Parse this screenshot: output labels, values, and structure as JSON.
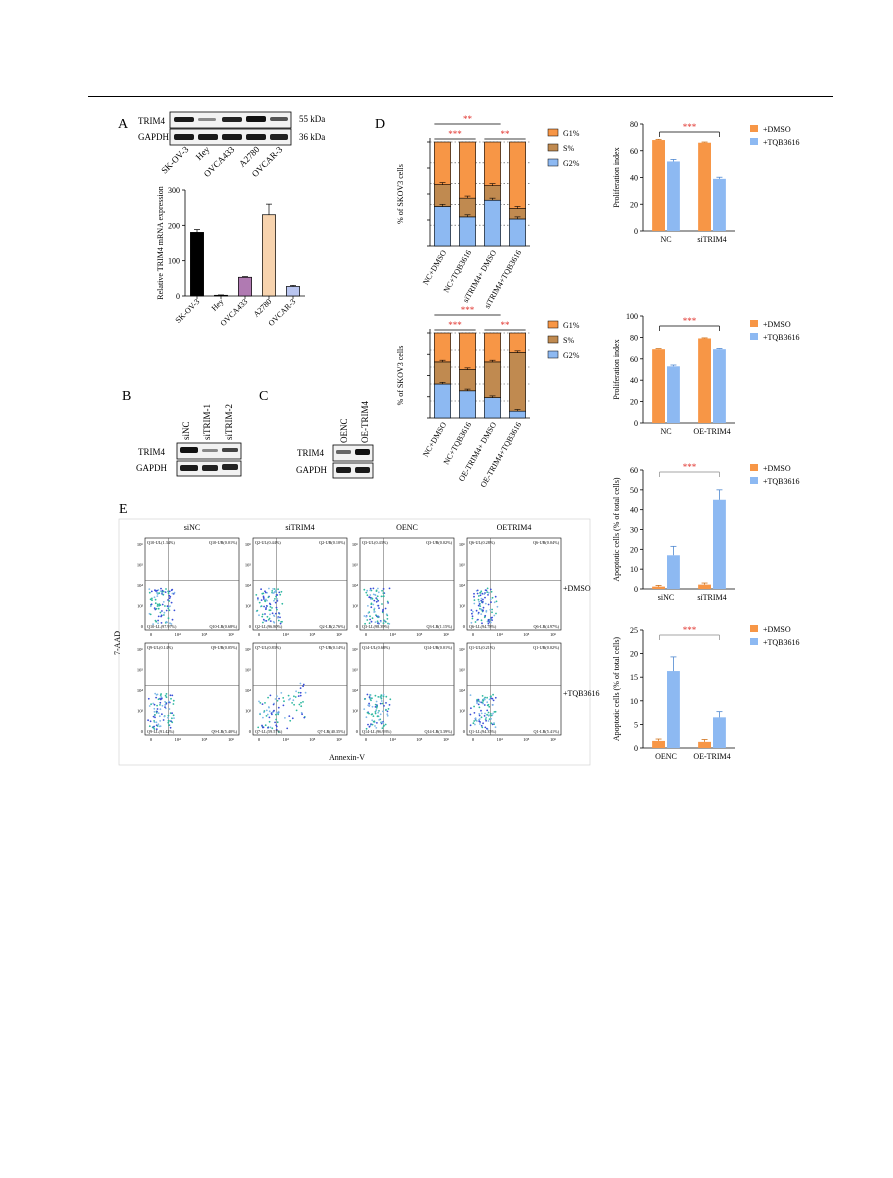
{
  "colors": {
    "orange": "#F79646",
    "lightblue": "#8DB9F2",
    "brown": "#C08A50",
    "blue": "#8DB9F2",
    "red": "#E0302A",
    "black": "#000000",
    "purple": "#B07AB2",
    "peach": "#F7D3AE",
    "lavender": "#B9C5F0"
  },
  "panel_labels": {
    "A": "A",
    "B": "B",
    "C": "C",
    "D": "D",
    "E": "E"
  },
  "blotA": {
    "rows": [
      "TRIM4",
      "GAPDH"
    ],
    "sizes": [
      "55 kDa",
      "36 kDa"
    ],
    "lanes": [
      "SK-OV-3",
      "Hey",
      "OVCA433",
      "A2780",
      "OVCAR-3"
    ]
  },
  "blotB": {
    "rows": [
      "TRIM4",
      "GAPDH"
    ],
    "lanes": [
      "siNC",
      "siTRIM-1",
      "siTRIM-2"
    ]
  },
  "blotC": {
    "rows": [
      "TRIM4",
      "GAPDH"
    ],
    "lanes": [
      "OENC",
      "OE-TRIM4"
    ]
  },
  "flow": {
    "col_titles": [
      "siNC",
      "siTRIM4",
      "OENC",
      "OETRIM4"
    ],
    "row_labels": [
      "+DMSO",
      "+TQB3616"
    ],
    "ylabel": "7-AAD",
    "xlabel": "Annexin-V",
    "ytick_labels": [
      "10⁶",
      "10⁵",
      "10⁴",
      "10³",
      "0"
    ],
    "xtick_labels": [
      "0",
      "10⁴",
      "10⁵",
      "10⁶"
    ],
    "quadrants": [
      [
        [
          "Q10-UL(1.34%)",
          "Q10-UR(0.01%)",
          "Q10-LL(97.97%)",
          "Q10-LR(0.68%)"
        ],
        [
          "Q2-UL(0.44%)",
          "Q2-UR(0.10%)",
          "Q2-LL(96.80%)",
          "Q2-LR(2.76%)"
        ],
        [
          "Q3-UL(0.43%)",
          "Q3-UR(0.02%)",
          "Q3-LL(98.39%)",
          "Q3-LR(1.15%)"
        ],
        [
          "Q6-UL(0.28%)",
          "Q6-UR(0.04%)",
          "Q6-LL(94.78%)",
          "Q6-LR(4.97%)"
        ]
      ],
      [
        [
          "Q9-UL(0.14%)",
          "Q9-UR(0.05%)",
          "Q9-LL(91.42%)",
          "Q9-LR(5.40%)"
        ],
        [
          "Q7-UL(0.83%)",
          "Q7-UR(0.14%)",
          "Q7-LL(59.57%)",
          "Q7-LR(40.35%)"
        ],
        [
          "Q14-UL(0.68%)",
          "Q14-UR(0.01%)",
          "Q14-LL(96.93%)",
          "Q14-LR(3.39%)"
        ],
        [
          "Q1-UL(0.21%)",
          "Q1-UR(0.02%)",
          "Q1-LL(94.35%)",
          "Q1-LR(5.41%)"
        ]
      ]
    ]
  },
  "chart_data": [
    {
      "id": "A_bar",
      "type": "bar",
      "title": "",
      "xlabel": "",
      "ylabel": "Relative TRIM4 mRNA expression",
      "ylim": [
        0,
        300
      ],
      "yticks": [
        0,
        100,
        200,
        300
      ],
      "categories": [
        "SK-OV-3",
        "Hey",
        "OVCA433",
        "A2780",
        "OVCAR-3"
      ],
      "values": [
        180,
        2,
        53,
        230,
        27
      ],
      "errors": [
        8,
        1,
        2,
        30,
        3
      ]
    },
    {
      "id": "D_stack1",
      "type": "bar",
      "stacked": true,
      "ylabel": "% of SKOV3 cells",
      "categories": [
        "NC+DMSO",
        "NC+TQB3616",
        "siTRIM4+ DMSO",
        "siTRIM4+TQB3616"
      ],
      "series": [
        {
          "name": "G2%",
          "values": [
            38,
            28,
            44,
            26
          ]
        },
        {
          "name": "S%",
          "values": [
            21,
            18,
            14,
            10
          ]
        },
        {
          "name": "G1%",
          "values": [
            41,
            54,
            42,
            64
          ]
        }
      ],
      "legend": [
        "G1%",
        "S%",
        "G2%"
      ],
      "significance": [
        {
          "label": "**",
          "pair": [
            0,
            2
          ]
        },
        {
          "label": "***",
          "pair": [
            0,
            1
          ]
        },
        {
          "label": "**",
          "pair": [
            2,
            3
          ]
        }
      ]
    },
    {
      "id": "D_stack2",
      "type": "bar",
      "stacked": true,
      "ylabel": "% of SKOV3 cells",
      "categories": [
        "NC+DMSO",
        "NC+TQB3616",
        "OE-TRIM4+ DMSO",
        "OE-TRIM4+TQB3616"
      ],
      "series": [
        {
          "name": "G2%",
          "values": [
            40,
            32,
            24,
            8
          ]
        },
        {
          "name": "S%",
          "values": [
            26,
            25,
            42,
            69
          ]
        },
        {
          "name": "G1%",
          "values": [
            34,
            43,
            34,
            23
          ]
        }
      ],
      "legend": [
        "G1%",
        "S%",
        "G2%"
      ],
      "significance": [
        {
          "label": "***",
          "pair": [
            0,
            2
          ]
        },
        {
          "label": "***",
          "pair": [
            0,
            1
          ]
        },
        {
          "label": "**",
          "pair": [
            2,
            3
          ]
        }
      ]
    },
    {
      "id": "D_prolif1",
      "type": "bar",
      "ylabel": "Proliferation index",
      "ylim": [
        0,
        80
      ],
      "yticks": [
        0,
        20,
        40,
        60,
        80
      ],
      "categories": [
        "NC",
        "siTRIM4"
      ],
      "series": [
        {
          "name": "+DMSO",
          "values": [
            68,
            66
          ],
          "errors": [
            0.5,
            0.5
          ]
        },
        {
          "name": "+TQB3616",
          "values": [
            52,
            39
          ],
          "errors": [
            1.5,
            1.2
          ]
        }
      ],
      "significance": [
        {
          "label": "***"
        }
      ]
    },
    {
      "id": "D_prolif2",
      "type": "bar",
      "ylabel": "Proliferation index",
      "ylim": [
        0,
        100
      ],
      "yticks": [
        0,
        20,
        40,
        60,
        80,
        100
      ],
      "categories": [
        "NC",
        "OE-TRIM4"
      ],
      "series": [
        {
          "name": "+DMSO",
          "values": [
            69,
            79
          ],
          "errors": [
            0.5,
            0.5
          ]
        },
        {
          "name": "+TQB3616",
          "values": [
            53,
            69
          ],
          "errors": [
            1.2,
            0.6
          ]
        }
      ],
      "significance": [
        {
          "label": "***"
        }
      ]
    },
    {
      "id": "E_apop1",
      "type": "bar",
      "ylabel": "Apoptotic cells (% of total cells)",
      "ylim": [
        0,
        60
      ],
      "yticks": [
        0,
        10,
        20,
        30,
        40,
        50,
        60
      ],
      "categories": [
        "siNC",
        "siTRIM4"
      ],
      "series": [
        {
          "name": "+DMSO",
          "values": [
            1.2,
            2.2
          ],
          "errors": [
            0.6,
            0.8
          ]
        },
        {
          "name": "+TQB3616",
          "values": [
            17,
            45
          ],
          "errors": [
            4.5,
            5
          ]
        }
      ],
      "significance": [
        {
          "label": "***"
        }
      ]
    },
    {
      "id": "E_apop2",
      "type": "bar",
      "ylabel": "Apoptotic cells (% of total cells)",
      "ylim": [
        0,
        25
      ],
      "yticks": [
        0,
        5,
        10,
        15,
        20,
        25
      ],
      "categories": [
        "OENC",
        "OE-TRIM4"
      ],
      "series": [
        {
          "name": "+DMSO",
          "values": [
            1.5,
            1.3
          ],
          "errors": [
            0.4,
            0.5
          ]
        },
        {
          "name": "+TQB3616",
          "values": [
            16.3,
            6.5
          ],
          "errors": [
            3,
            1.2
          ]
        }
      ],
      "significance": [
        {
          "label": "***"
        }
      ]
    }
  ]
}
